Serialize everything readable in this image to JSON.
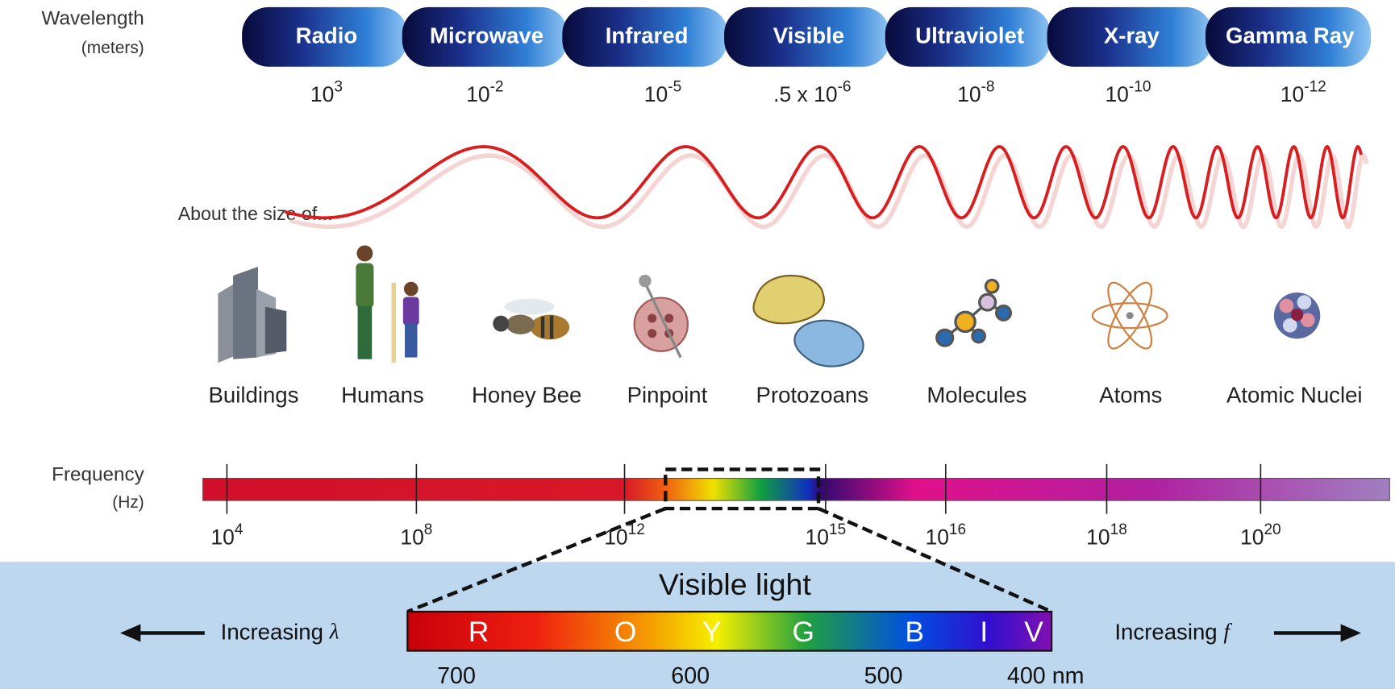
{
  "labels": {
    "wavelength": "Wavelength",
    "wavelength_unit": "(meters)",
    "frequency": "Frequency",
    "frequency_unit": "(Hz)",
    "size_intro": "About the size of..."
  },
  "bands": [
    {
      "name": "Radio",
      "wavelength": {
        "base": "10",
        "exp": "3"
      }
    },
    {
      "name": "Microwave",
      "wavelength": {
        "base": "10",
        "exp": "-2"
      }
    },
    {
      "name": "Infrared",
      "wavelength": {
        "base": "10",
        "exp": "-5"
      }
    },
    {
      "name": "Visible",
      "wavelength": {
        "base": ".5 x 10",
        "exp": "-6"
      }
    },
    {
      "name": "Ultraviolet",
      "wavelength": {
        "base": "10",
        "exp": "-8"
      }
    },
    {
      "name": "X-ray",
      "wavelength": {
        "base": "10",
        "exp": "-10"
      }
    },
    {
      "name": "Gamma Ray",
      "wavelength": {
        "base": "10",
        "exp": "-12"
      }
    }
  ],
  "objects": [
    "Buildings",
    "Humans",
    "Honey Bee",
    "Pinpoint",
    "Protozoans",
    "Molecules",
    "Atoms",
    "Atomic Nuclei"
  ],
  "frequency_ticks": [
    {
      "base": "10",
      "exp": "4"
    },
    {
      "base": "10",
      "exp": "8"
    },
    {
      "base": "10",
      "exp": "12"
    },
    {
      "base": "10",
      "exp": "15"
    },
    {
      "base": "10",
      "exp": "16"
    },
    {
      "base": "10",
      "exp": "18"
    },
    {
      "base": "10",
      "exp": "20"
    }
  ],
  "visible_light": {
    "title": "Visible light",
    "colors": [
      "R",
      "O",
      "Y",
      "G",
      "B",
      "I",
      "V"
    ],
    "wavelengths": [
      "700",
      "600",
      "500",
      "400 nm"
    ],
    "left": {
      "label": "Increasing",
      "symbol": "λ"
    },
    "right": {
      "label": "Increasing",
      "symbol": "f"
    }
  }
}
